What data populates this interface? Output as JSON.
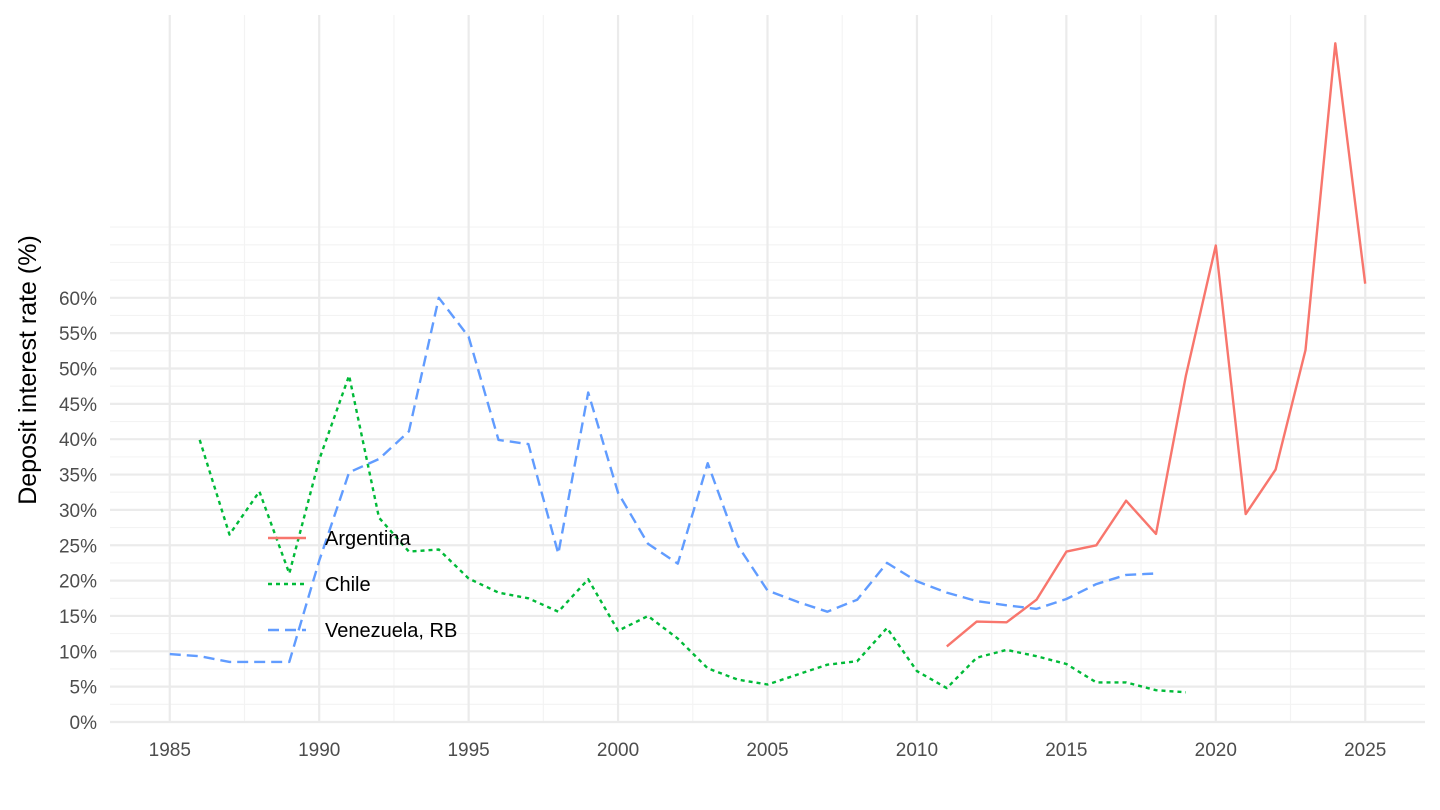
{
  "chart_data": {
    "type": "line",
    "ylabel": "Deposit interest rate (%)",
    "xlabel": "",
    "title": "",
    "xlim": [
      1983,
      2027
    ],
    "ylim": [
      0,
      100
    ],
    "x_ticks": [
      1985,
      1990,
      1995,
      2000,
      2005,
      2010,
      2015,
      2020,
      2025
    ],
    "x_tick_labels": [
      "1985",
      "1990",
      "1995",
      "2000",
      "2005",
      "2010",
      "2015",
      "2020",
      "2025"
    ],
    "y_ticks": [
      0,
      5,
      10,
      15,
      20,
      25,
      30,
      35,
      40,
      45,
      50,
      55,
      60
    ],
    "y_tick_labels": [
      "0%",
      "5%",
      "10%",
      "15%",
      "20%",
      "25%",
      "30%",
      "35%",
      "40%",
      "45%",
      "50%",
      "55%",
      "60%"
    ],
    "grid": true,
    "legend_position": "inside-left",
    "series": [
      {
        "name": "Argentina",
        "color": "#F8766D",
        "dash": "solid",
        "x": [
          2011,
          2012,
          2013,
          2014,
          2015,
          2016,
          2017,
          2018,
          2019,
          2020,
          2021,
          2022,
          2023,
          2024,
          2025
        ],
        "values": [
          10.7,
          14.2,
          14.1,
          17.3,
          24.1,
          25.0,
          31.3,
          26.6,
          49.0,
          67.4,
          29.4,
          35.7,
          52.6,
          96.0,
          62.0
        ]
      },
      {
        "name": "Chile",
        "color": "#00BA38",
        "dash": "dotted",
        "x": [
          1986,
          1987,
          1988,
          1989,
          1990,
          1991,
          1992,
          1993,
          1994,
          1995,
          1996,
          1997,
          1998,
          1999,
          2000,
          2001,
          2002,
          2003,
          2004,
          2005,
          2006,
          2007,
          2008,
          2009,
          2010,
          2011,
          2012,
          2013,
          2014,
          2015,
          2016,
          2017,
          2018,
          2019
        ],
        "values": [
          39.9,
          26.5,
          32.6,
          21.0,
          37.1,
          49.0,
          28.9,
          24.1,
          24.4,
          20.3,
          18.3,
          17.5,
          15.6,
          20.2,
          12.9,
          15.0,
          11.8,
          7.6,
          6.0,
          5.3,
          6.7,
          8.1,
          8.6,
          13.3,
          7.2,
          4.8,
          9.1,
          10.2,
          9.3,
          8.2,
          5.6,
          5.6,
          4.5,
          4.2
        ]
      },
      {
        "name": "Venezuela, RB",
        "color": "#619CFF",
        "dash": "dashed",
        "x": [
          1985,
          1986,
          1987,
          1988,
          1989,
          1990,
          1991,
          1992,
          1993,
          1994,
          1995,
          1996,
          1997,
          1998,
          1999,
          2000,
          2001,
          2002,
          2003,
          2004,
          2005,
          2006,
          2007,
          2008,
          2009,
          2010,
          2011,
          2012,
          2013,
          2014,
          2015,
          2016,
          2017,
          2018
        ],
        "values": [
          9.6,
          9.3,
          8.5,
          8.5,
          8.5,
          22.8,
          35.3,
          37.2,
          41.1,
          60.0,
          54.5,
          39.9,
          39.3,
          23.8,
          46.6,
          32.4,
          25.2,
          22.4,
          36.6,
          25.0,
          18.6,
          17.0,
          15.6,
          17.3,
          22.5,
          19.9,
          18.3,
          17.1,
          16.5,
          16.0,
          17.4,
          19.5,
          20.8,
          21.0
        ]
      }
    ]
  }
}
